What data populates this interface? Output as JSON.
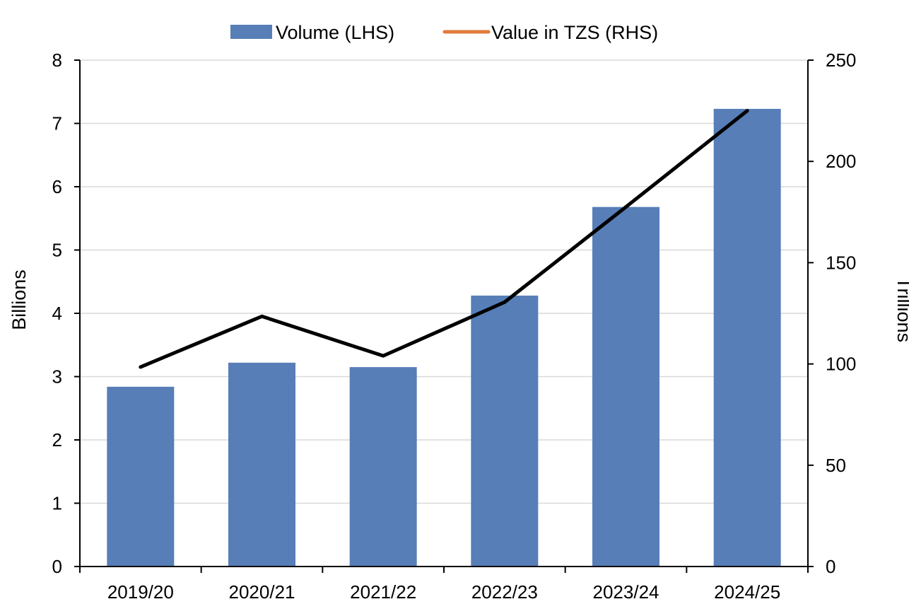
{
  "chart_data": {
    "type": "bar",
    "categories": [
      "2019/20",
      "2020/21",
      "2021/22",
      "2022/23",
      "2023/24",
      "2024/25"
    ],
    "series": [
      {
        "name": "Volume (LHS)",
        "type": "bar",
        "axis": "left",
        "color": "#577EB7",
        "values": [
          2.84,
          3.22,
          3.15,
          4.28,
          5.68,
          7.23
        ]
      },
      {
        "name": "Value in TZS (RHS)",
        "type": "line",
        "axis": "right",
        "color": "#000000",
        "legend_color": "#E07B39",
        "values": [
          98.5,
          123.5,
          104.0,
          130.5,
          177.5,
          225.0
        ]
      }
    ],
    "left_axis": {
      "label": "Billions",
      "ylim": [
        0,
        8
      ],
      "ticks": [
        "0",
        "1",
        "2",
        "3",
        "4",
        "5",
        "6",
        "7",
        "8"
      ]
    },
    "right_axis": {
      "label": "Trillions",
      "ylim": [
        0,
        250
      ],
      "ticks": [
        "0",
        "50",
        "100",
        "150",
        "200",
        "250"
      ]
    },
    "grid": true,
    "legend_position": "top-center"
  }
}
